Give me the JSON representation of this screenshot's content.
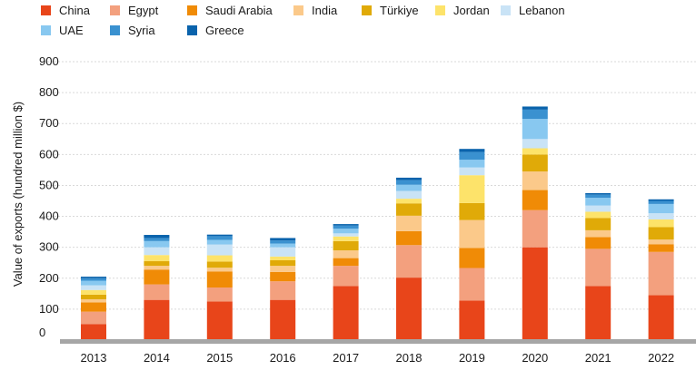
{
  "chart_data": {
    "type": "bar",
    "stacked": true,
    "title": "",
    "xlabel": "",
    "ylabel": "Value of exports (hundred million $)",
    "ylim": [
      0,
      900
    ],
    "yticks": [
      "0",
      "100",
      "200",
      "300",
      "400",
      "500",
      "600",
      "700",
      "800",
      "900"
    ],
    "grid": true,
    "legend_position": "top-left",
    "categories": [
      "2013",
      "2014",
      "2015",
      "2016",
      "2017",
      "2018",
      "2019",
      "2020",
      "2021",
      "2022"
    ],
    "series": [
      {
        "name": "China",
        "color": "#e8451a",
        "values": [
          52,
          130,
          125,
          130,
          175,
          202,
          128,
          300,
          175,
          145
        ]
      },
      {
        "name": "Egypt",
        "color": "#f3a07e",
        "values": [
          40,
          50,
          45,
          60,
          65,
          105,
          105,
          120,
          120,
          140
        ]
      },
      {
        "name": "Saudi Arabia",
        "color": "#f08b06",
        "values": [
          30,
          48,
          52,
          30,
          25,
          45,
          65,
          65,
          38,
          25
        ]
      },
      {
        "name": "India",
        "color": "#fbc98a",
        "values": [
          10,
          12,
          12,
          20,
          25,
          50,
          90,
          60,
          22,
          15
        ]
      },
      {
        "name": "Türkiye",
        "color": "#e0aa08",
        "values": [
          15,
          15,
          20,
          18,
          30,
          40,
          55,
          55,
          40,
          40
        ]
      },
      {
        "name": "Jordan",
        "color": "#fde36a",
        "values": [
          15,
          20,
          20,
          12,
          15,
          15,
          90,
          20,
          20,
          25
        ]
      },
      {
        "name": "Lebanon",
        "color": "#c9e3f6",
        "values": [
          15,
          25,
          35,
          30,
          10,
          25,
          25,
          30,
          20,
          20
        ]
      },
      {
        "name": "UAE",
        "color": "#88c8f0",
        "values": [
          15,
          20,
          15,
          12,
          15,
          20,
          25,
          65,
          25,
          30
        ]
      },
      {
        "name": "Syria",
        "color": "#3a91d0",
        "values": [
          8,
          10,
          12,
          10,
          10,
          15,
          25,
          30,
          10,
          10
        ]
      },
      {
        "name": "Greece",
        "color": "#0a63ac",
        "values": [
          5,
          10,
          5,
          8,
          5,
          8,
          10,
          10,
          5,
          5
        ]
      }
    ]
  }
}
